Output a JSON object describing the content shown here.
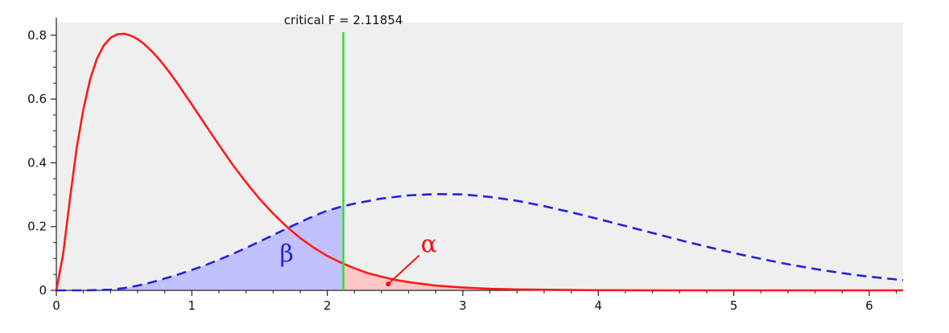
{
  "chart_data": {
    "type": "area",
    "title": "",
    "xlabel": "",
    "ylabel": "",
    "xlim": [
      0,
      6.25
    ],
    "ylim": [
      0,
      0.84
    ],
    "x_ticks": [
      {
        "value": 0,
        "label": "0"
      },
      {
        "value": 1,
        "label": "1"
      },
      {
        "value": 2,
        "label": "2"
      },
      {
        "value": 3,
        "label": "3"
      },
      {
        "value": 4,
        "label": "4"
      },
      {
        "value": 5,
        "label": "5"
      },
      {
        "value": 6,
        "label": "6"
      }
    ],
    "y_ticks": [
      {
        "value": 0,
        "label": "0"
      },
      {
        "value": 0.2,
        "label": "0.2"
      },
      {
        "value": 0.4,
        "label": "0.4"
      },
      {
        "value": 0.6,
        "label": "0.6"
      },
      {
        "value": 0.8,
        "label": "0.8"
      }
    ],
    "grid": false,
    "series": [
      {
        "style": "solid",
        "color": "#ff1a1a",
        "x": [
          0,
          0.05,
          0.1,
          0.15,
          0.2,
          0.25,
          0.3,
          0.35,
          0.4,
          0.45,
          0.5,
          0.55,
          0.6,
          0.65,
          0.7,
          0.75,
          0.8,
          0.85,
          0.9,
          0.95,
          1.0,
          1.1,
          1.2,
          1.3,
          1.4,
          1.5,
          1.6,
          1.7,
          1.8,
          1.9,
          2.0,
          2.1,
          2.2,
          2.3,
          2.4,
          2.5,
          2.6,
          2.8,
          3.0,
          3.2,
          3.4,
          3.6,
          3.8,
          4.0,
          4.3,
          4.6,
          5.0,
          5.5,
          6.0,
          6.25
        ],
        "values": [
          0,
          0.112,
          0.285,
          0.445,
          0.569,
          0.663,
          0.727,
          0.768,
          0.792,
          0.803,
          0.805,
          0.799,
          0.788,
          0.772,
          0.752,
          0.729,
          0.703,
          0.675,
          0.645,
          0.614,
          0.583,
          0.519,
          0.456,
          0.395,
          0.339,
          0.287,
          0.241,
          0.2,
          0.164,
          0.134,
          0.108,
          0.087,
          0.069,
          0.054,
          0.043,
          0.033,
          0.026,
          0.015,
          0.009,
          0.005,
          0.003,
          0.002,
          0.001,
          0.0006,
          0.0003,
          0.0001,
          3e-05,
          0,
          0,
          0
        ]
      },
      {
        "style": "dashed",
        "color": "#2323dd",
        "x": [
          0,
          0.2,
          0.4,
          0.5,
          0.6,
          0.7,
          0.8,
          0.9,
          1.0,
          1.1,
          1.2,
          1.3,
          1.4,
          1.5,
          1.6,
          1.7,
          1.8,
          1.9,
          2.0,
          2.1,
          2.2,
          2.4,
          2.6,
          2.8,
          3.0,
          3.2,
          3.4,
          3.6,
          3.8,
          4.0,
          4.2,
          4.4,
          4.6,
          4.8,
          5.0,
          5.2,
          5.4,
          5.6,
          5.8,
          6.0,
          6.25
        ],
        "values": [
          0,
          0,
          0.002,
          0.007,
          0.015,
          0.025,
          0.037,
          0.05,
          0.064,
          0.079,
          0.096,
          0.114,
          0.133,
          0.153,
          0.173,
          0.194,
          0.214,
          0.233,
          0.25,
          0.262,
          0.272,
          0.288,
          0.298,
          0.302,
          0.301,
          0.293,
          0.281,
          0.264,
          0.245,
          0.224,
          0.202,
          0.18,
          0.158,
          0.137,
          0.117,
          0.099,
          0.082,
          0.067,
          0.054,
          0.043,
          0.032
        ]
      }
    ],
    "shaded_regions": [
      {
        "name": "beta",
        "color": "#b8b8ff",
        "from": 0,
        "to": 2.11854,
        "under": "dashed"
      },
      {
        "name": "alpha",
        "color": "#ffc0c0",
        "from": 2.11854,
        "to": 6.25,
        "under": "solid"
      }
    ],
    "critical_line": {
      "x": 2.11854,
      "label": "critical F = 2.11854",
      "color": "#33dd33"
    },
    "annotations": [
      {
        "label": "β",
        "x": 1.7,
        "y": 0.09,
        "color": "#2323dd"
      },
      {
        "label": "α",
        "x": 2.75,
        "y": 0.12,
        "color": "#ee1111",
        "arrow_to": [
          2.45,
          0.02
        ]
      }
    ],
    "colors": {
      "plot_background": "#efefef",
      "axis": "#222222"
    }
  }
}
